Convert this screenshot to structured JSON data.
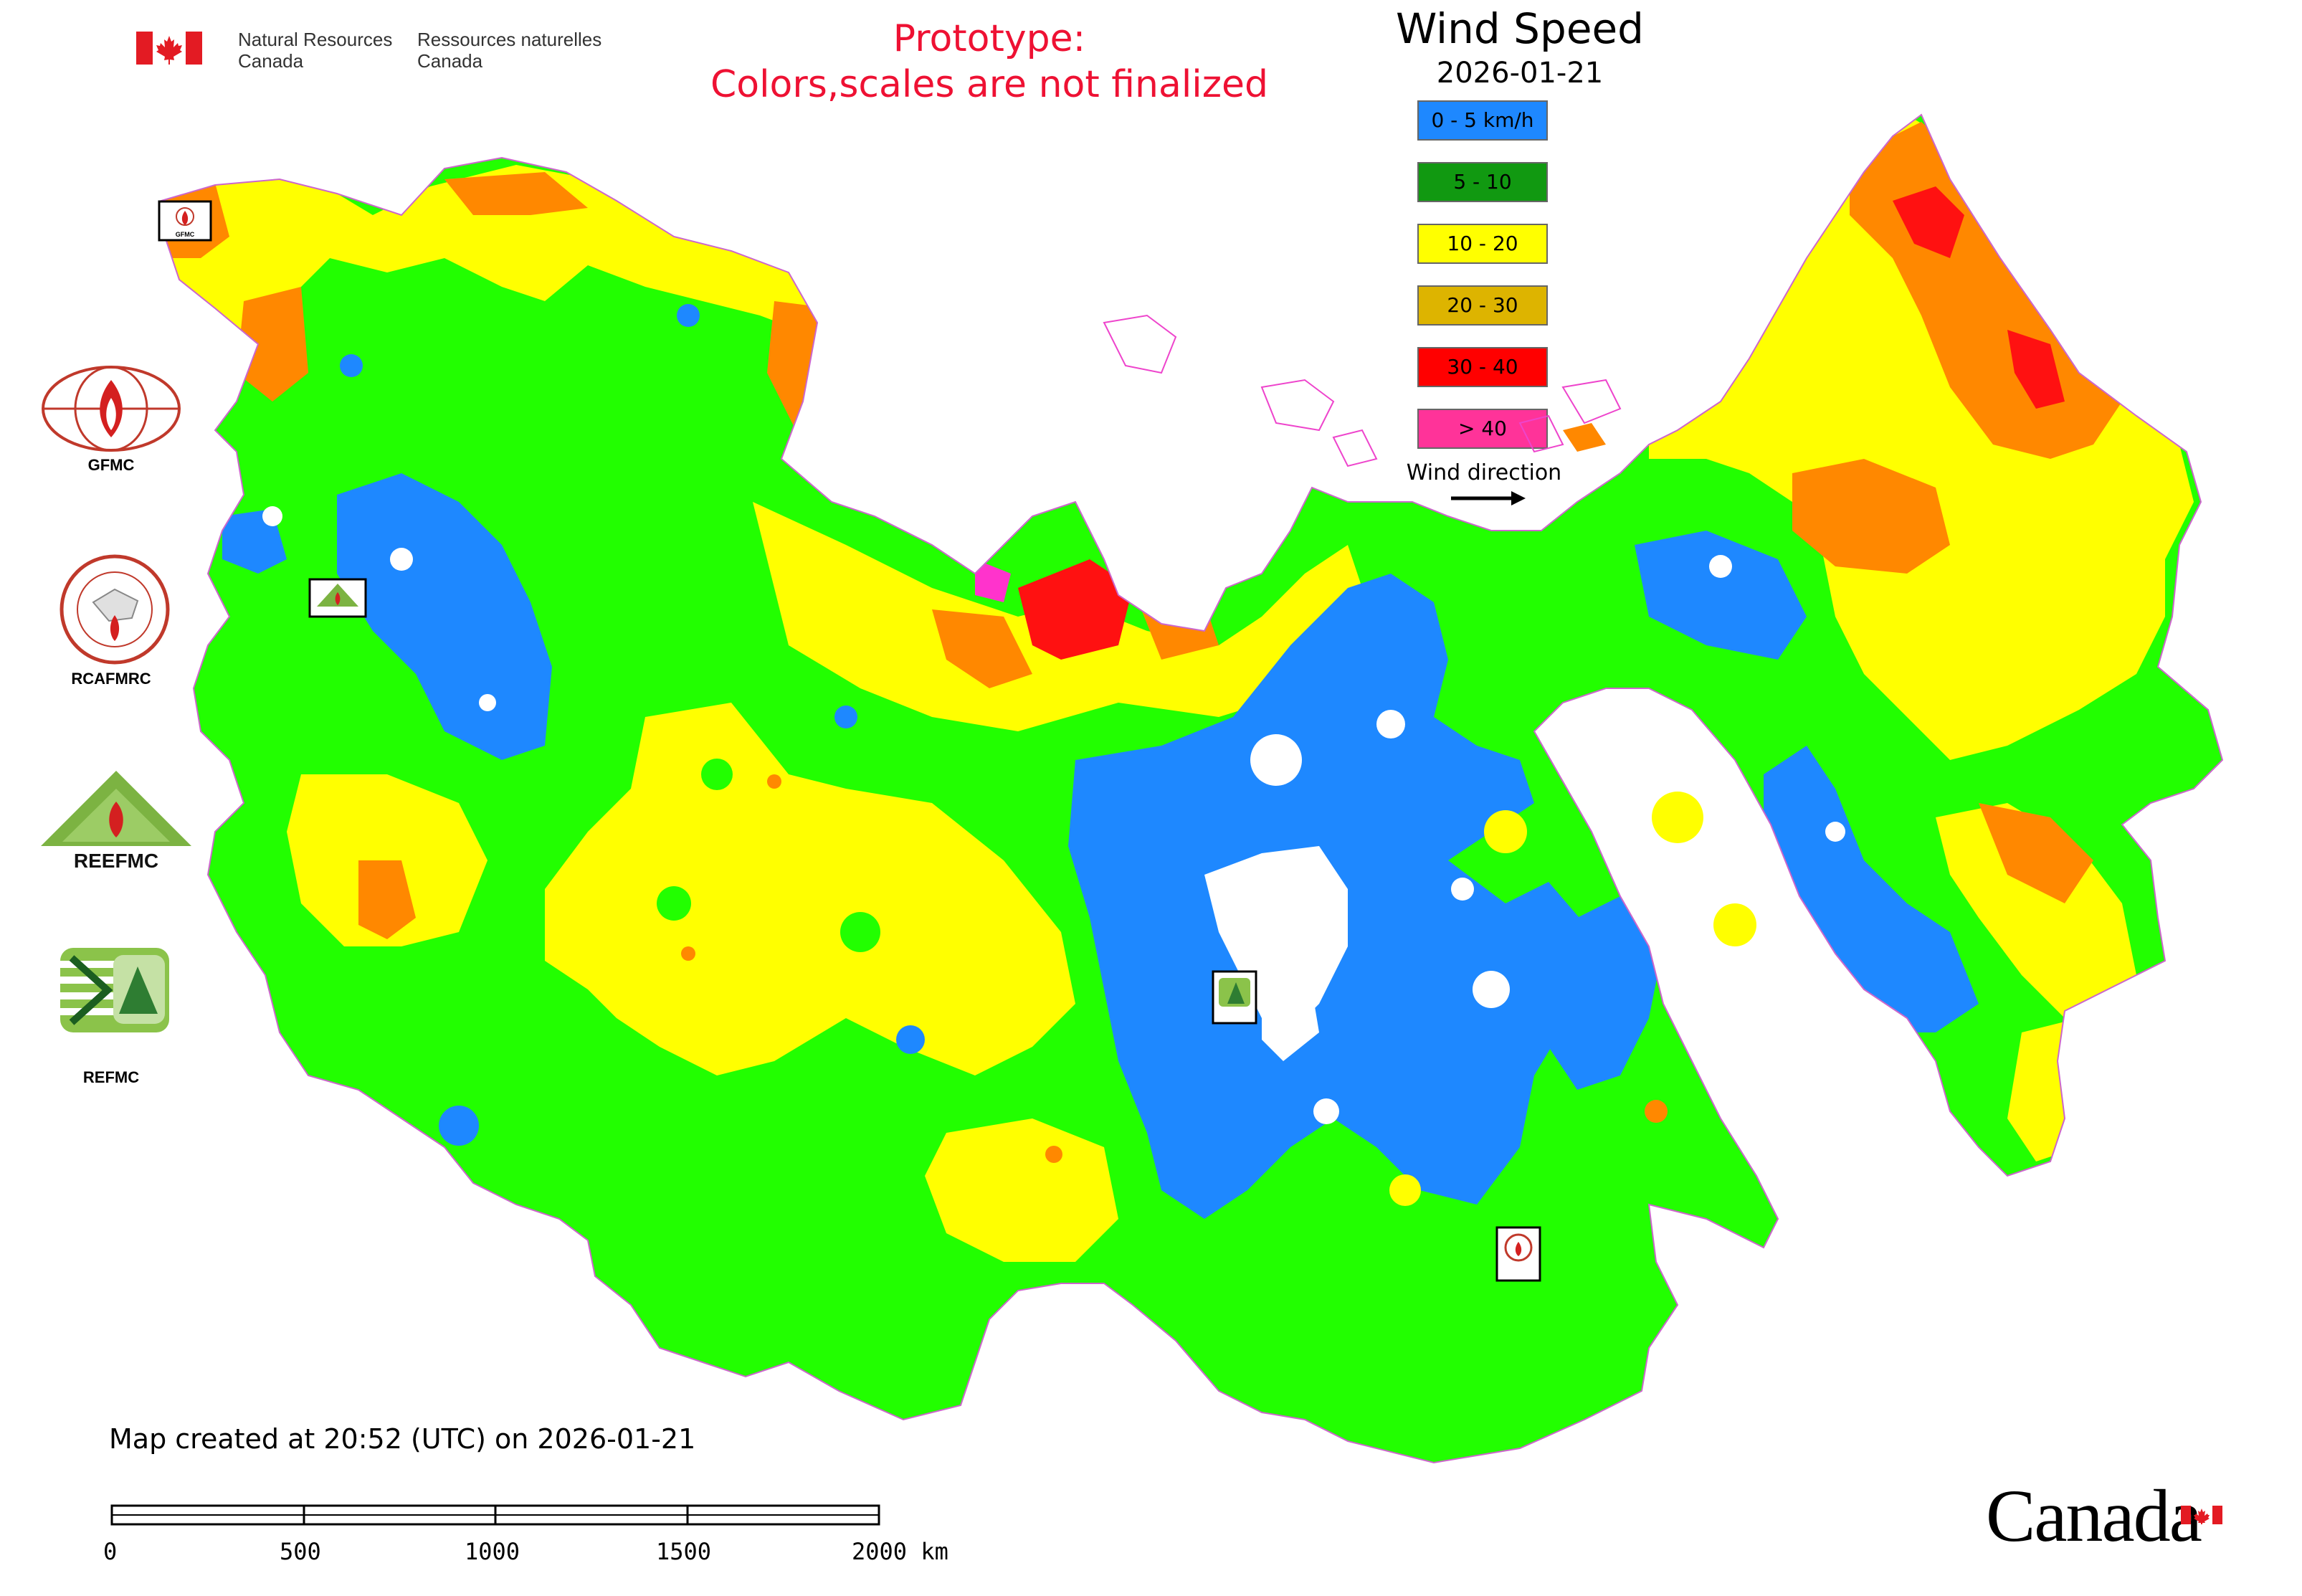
{
  "header": {
    "agency_en": "Natural Resources\nCanada",
    "agency_fr": "Ressources naturelles\nCanada",
    "prototype_line1": "Prototype:",
    "prototype_line2": "Colors,scales are not finalized"
  },
  "legend": {
    "title": "Wind Speed",
    "date": "2026-01-21",
    "classes": [
      {
        "label": "0 - 5 km/h",
        "color": "#1e88ff"
      },
      {
        "label": "5 - 10",
        "color": "#119911"
      },
      {
        "label": "10 - 20",
        "color": "#ffff00"
      },
      {
        "label": "20 - 30",
        "color": "#ddb400"
      },
      {
        "label": "30 - 40",
        "color": "#ff0000"
      },
      {
        "label": "> 40",
        "color": "#ff3399"
      }
    ],
    "wind_direction_label": "Wind direction"
  },
  "map_colors": {
    "calm": "#1e88ff",
    "light": "#22ff00",
    "moderate": "#ffff00",
    "fresh": "#ff8800",
    "strong": "#ff1111",
    "gale": "#ff33cc",
    "water": "#ffffff"
  },
  "organizations": [
    {
      "name": "GFMC",
      "icon": "gfmc-logo-icon"
    },
    {
      "name": "RCAFMRC",
      "icon": "rcafmrc-logo-icon"
    },
    {
      "name": "REEFMC",
      "icon": "reefmc-logo-icon"
    },
    {
      "name": "REFMC",
      "icon": "refmc-logo-icon"
    }
  ],
  "footer": {
    "created": "Map created at 20:52 (UTC) on 2026-01-21",
    "scale_ticks": [
      "0",
      "500",
      "1000",
      "1500",
      "2000 km"
    ],
    "wordmark": "Canada"
  }
}
